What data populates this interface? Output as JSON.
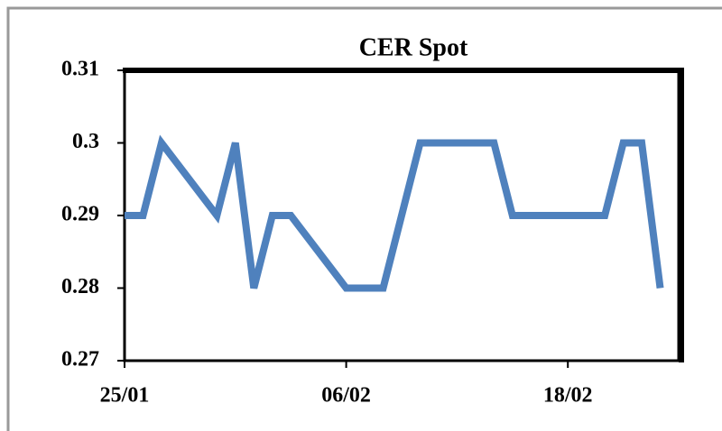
{
  "chart_data": {
    "type": "line",
    "title": "CER Spot",
    "x": [
      "25/01",
      "26/01",
      "27/01",
      "30/01",
      "31/01",
      "01/02",
      "02/02",
      "03/02",
      "06/02",
      "08/02",
      "10/02",
      "14/02",
      "15/02",
      "20/02",
      "21/02",
      "22/02",
      "23/02"
    ],
    "series": [
      {
        "name": "CER Spot",
        "color": "#4f81bd",
        "values": [
          0.29,
          0.29,
          0.3,
          0.29,
          0.3,
          0.28,
          0.29,
          0.29,
          0.28,
          0.28,
          0.3,
          0.3,
          0.29,
          0.29,
          0.3,
          0.3,
          0.28
        ]
      }
    ],
    "xlim": [
      "25/01",
      "24/02"
    ],
    "xticks": [
      "25/01",
      "06/02",
      "18/02"
    ],
    "ylim": [
      0.27,
      0.31
    ],
    "yticks": [
      0.27,
      0.28,
      0.29,
      0.3,
      0.31
    ]
  }
}
